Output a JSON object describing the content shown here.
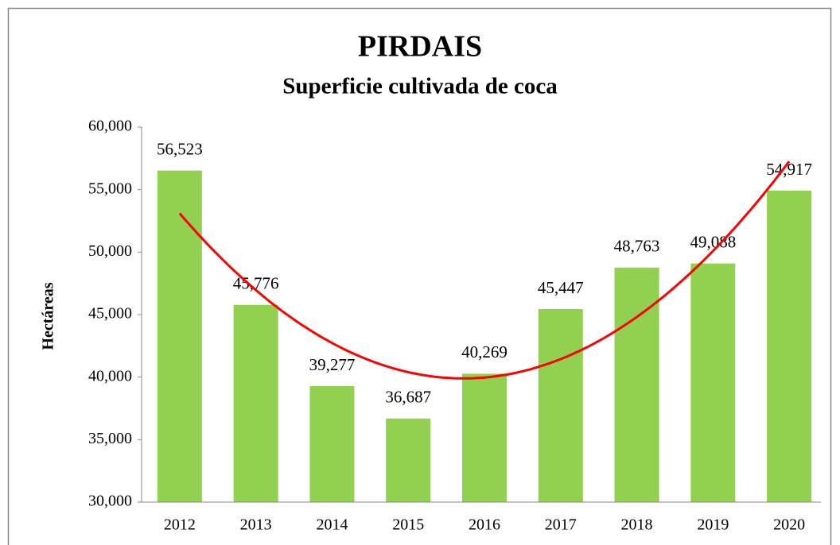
{
  "chart_data": {
    "type": "bar",
    "title": "PIRDAIS",
    "subtitle": "Superficie cultivada de coca",
    "y_label": "Hectáreas",
    "categories": [
      "2012",
      "2013",
      "2014",
      "2015",
      "2016",
      "2017",
      "2018",
      "2019",
      "2020"
    ],
    "values": [
      56523,
      45776,
      39277,
      36687,
      40269,
      45447,
      48763,
      49088,
      54917
    ],
    "value_labels": [
      "56,523",
      "45,776",
      "39,277",
      "36,687",
      "40,269",
      "45,447",
      "48,763",
      "49,088",
      "54,917"
    ],
    "color": "#92d050",
    "ylim": [
      30000,
      60000
    ],
    "yticks": [
      {
        "value": 30000,
        "label": "30,000"
      },
      {
        "value": 35000,
        "label": "35,000"
      },
      {
        "value": 40000,
        "label": "40,000"
      },
      {
        "value": 45000,
        "label": "45,000"
      },
      {
        "value": 50000,
        "label": "50,000"
      },
      {
        "value": 55000,
        "label": "55,000"
      },
      {
        "value": 60000,
        "label": "60,000"
      }
    ],
    "grid": false,
    "trendline": "polynomial",
    "trendline_order": 2,
    "trendline_color": "#ff0000"
  }
}
